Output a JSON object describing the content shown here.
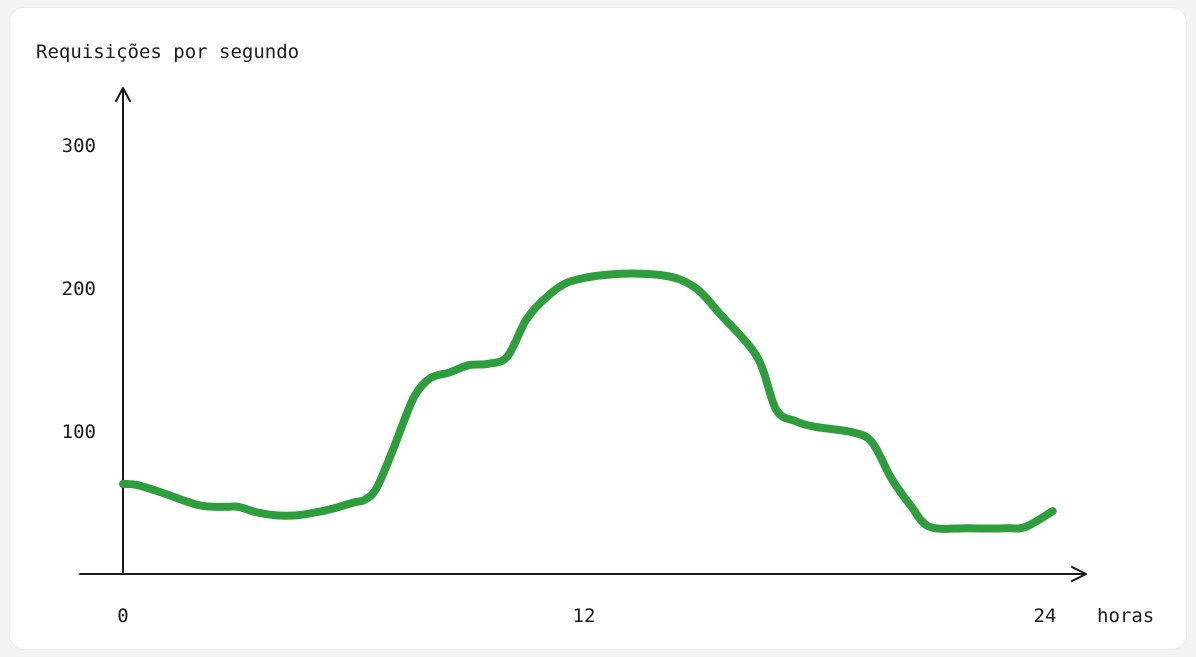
{
  "chart_data": {
    "type": "line",
    "ylabel": "Requisições por segundo",
    "xlabel": "horas",
    "xlim": [
      0,
      24
    ],
    "ylim": [
      0,
      350
    ],
    "x_ticks": [
      "0",
      "12",
      "24"
    ],
    "y_ticks": [
      "100",
      "200",
      "300"
    ],
    "grid": false,
    "series": [
      {
        "color": "#2e9e3c",
        "points": [
          [
            0,
            63
          ],
          [
            0.4,
            62
          ],
          [
            1,
            57
          ],
          [
            2,
            48
          ],
          [
            2.7,
            47
          ],
          [
            3,
            47
          ],
          [
            3.5,
            43
          ],
          [
            4,
            41
          ],
          [
            4.5,
            41
          ],
          [
            5,
            43
          ],
          [
            5.5,
            46
          ],
          [
            6,
            50
          ],
          [
            6.3,
            52
          ],
          [
            6.6,
            60
          ],
          [
            7,
            85
          ],
          [
            7.3,
            106
          ],
          [
            7.6,
            125
          ],
          [
            8,
            137
          ],
          [
            8.5,
            141
          ],
          [
            9,
            146
          ],
          [
            9.5,
            147
          ],
          [
            10,
            152
          ],
          [
            10.5,
            178
          ],
          [
            11,
            193
          ],
          [
            11.5,
            203
          ],
          [
            12,
            207
          ],
          [
            12.5,
            209
          ],
          [
            13,
            210
          ],
          [
            13.5,
            210
          ],
          [
            14,
            209
          ],
          [
            14.5,
            206
          ],
          [
            15,
            198
          ],
          [
            15.5,
            183
          ],
          [
            16.5,
            152
          ],
          [
            17,
            115
          ],
          [
            17.5,
            107
          ],
          [
            18,
            103
          ],
          [
            19,
            99
          ],
          [
            19.5,
            92
          ],
          [
            20,
            67
          ],
          [
            20.5,
            48
          ],
          [
            21,
            33
          ],
          [
            22,
            32
          ],
          [
            23,
            32
          ],
          [
            23.5,
            33
          ],
          [
            24.2,
            44
          ]
        ]
      }
    ]
  }
}
